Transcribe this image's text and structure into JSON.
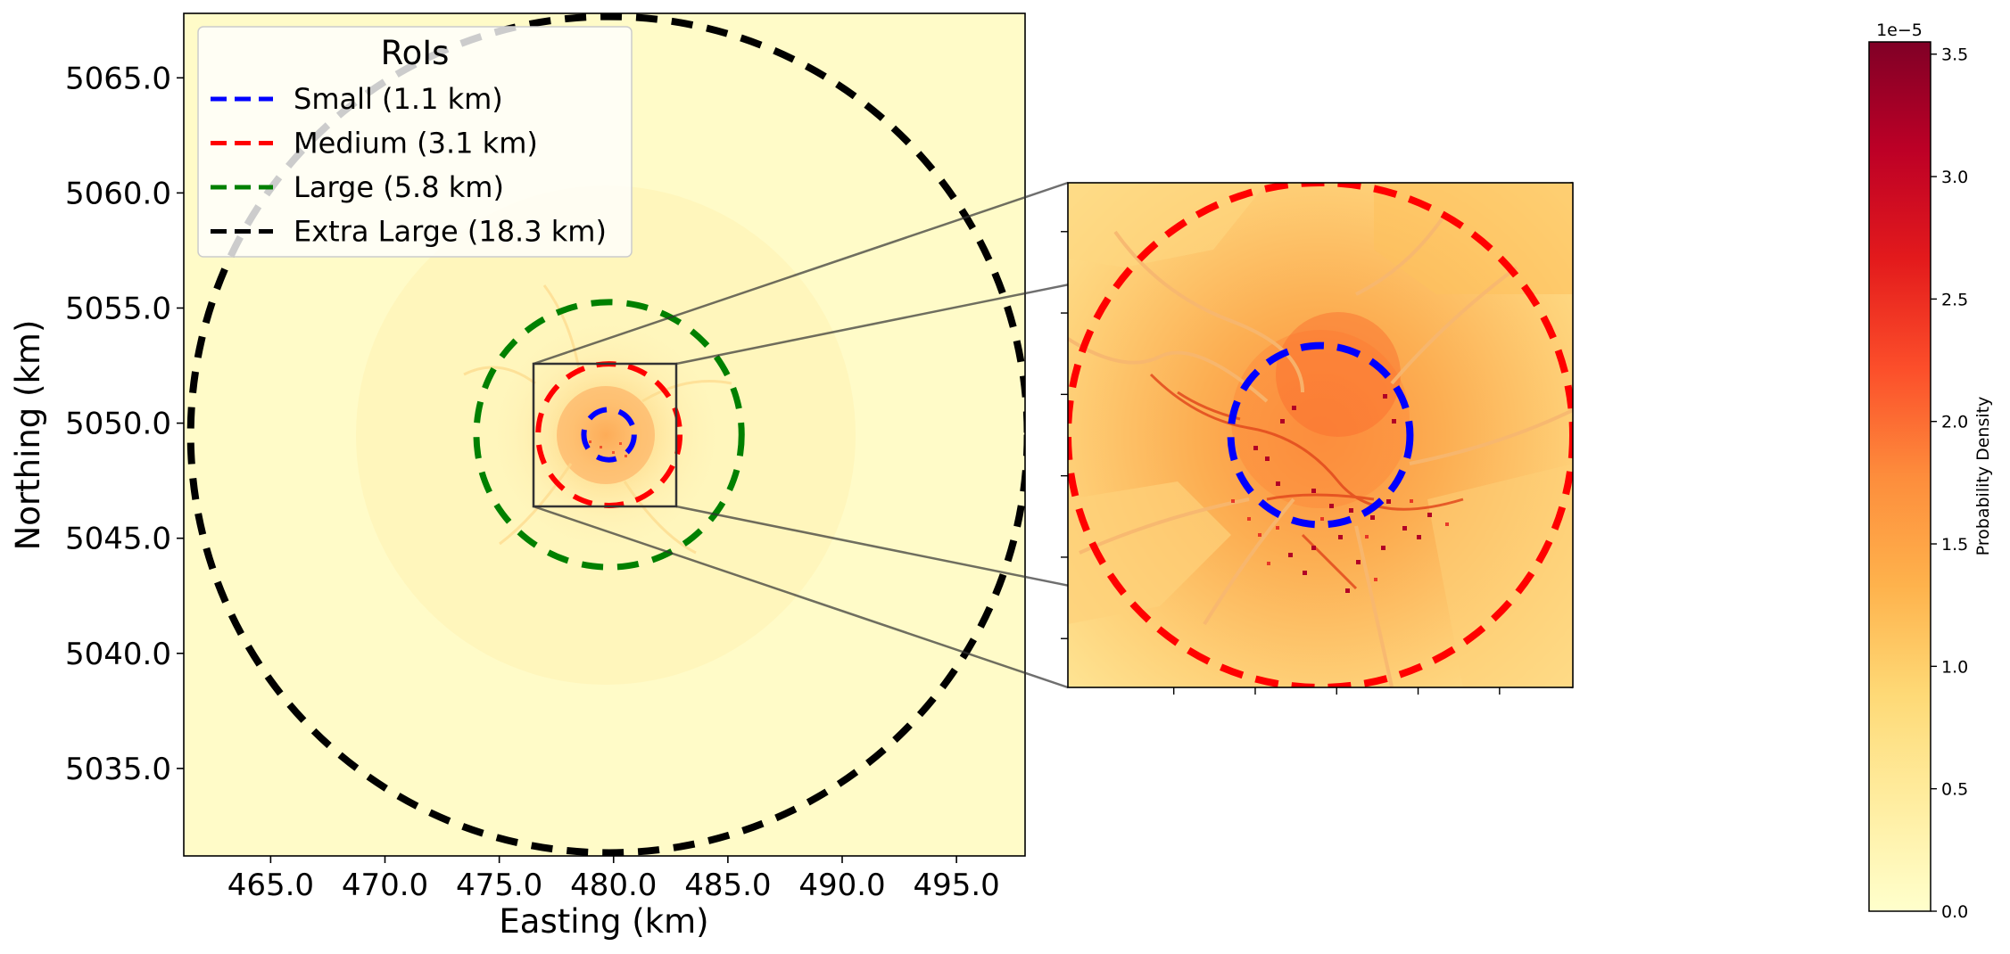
{
  "chart_data": {
    "type": "heatmap",
    "main_map": {
      "xlabel": "Easting (km)",
      "ylabel": "Northing (km)",
      "xlim": [
        461.2,
        498.0
      ],
      "ylim": [
        5031.2,
        5067.8
      ],
      "xticks": [
        465.0,
        470.0,
        475.0,
        480.0,
        485.0,
        490.0,
        495.0
      ],
      "xtick_labels": [
        "465.0",
        "470.0",
        "475.0",
        "480.0",
        "485.0",
        "490.0",
        "495.0"
      ],
      "yticks": [
        5035.0,
        5040.0,
        5045.0,
        5050.0,
        5055.0,
        5060.0,
        5065.0
      ],
      "ytick_labels": [
        "5035.0",
        "5040.0",
        "5045.0",
        "5050.0",
        "5055.0",
        "5060.0",
        "5065.0"
      ],
      "center": [
        479.8,
        5049.5
      ],
      "zoom_box": {
        "x": [
          476.7,
          482.9
        ],
        "y": [
          5046.4,
          5052.6
        ]
      }
    },
    "legend": {
      "title": "RoIs",
      "placement": "upper-left",
      "entries": [
        {
          "label": "Small (1.1 km)",
          "color": "#0000ff",
          "radius_km": 1.1
        },
        {
          "label": "Medium (3.1 km)",
          "color": "#ff0000",
          "radius_km": 3.1
        },
        {
          "label": "Large (5.8 km)",
          "color": "#008000",
          "radius_km": 5.8
        },
        {
          "label": "Extra Large (18.3 km)",
          "color": "#000000",
          "radius_km": 18.3
        }
      ]
    },
    "inset": {
      "shown_rois": [
        "Small (1.1 km)",
        "Medium (3.1 km)"
      ],
      "tick_labels_hidden": true
    },
    "colorbar": {
      "label": "Probability Density",
      "multiplier": "1e−5",
      "range": [
        0.0,
        3.55
      ],
      "ticks": [
        0.0,
        0.5,
        1.0,
        1.5,
        2.0,
        2.5,
        3.0,
        3.5
      ],
      "tick_labels": [
        "0.0",
        "0.5",
        "1.0",
        "1.5",
        "2.0",
        "2.5",
        "3.0",
        "3.5"
      ],
      "colormap": "YlOrRd"
    }
  }
}
